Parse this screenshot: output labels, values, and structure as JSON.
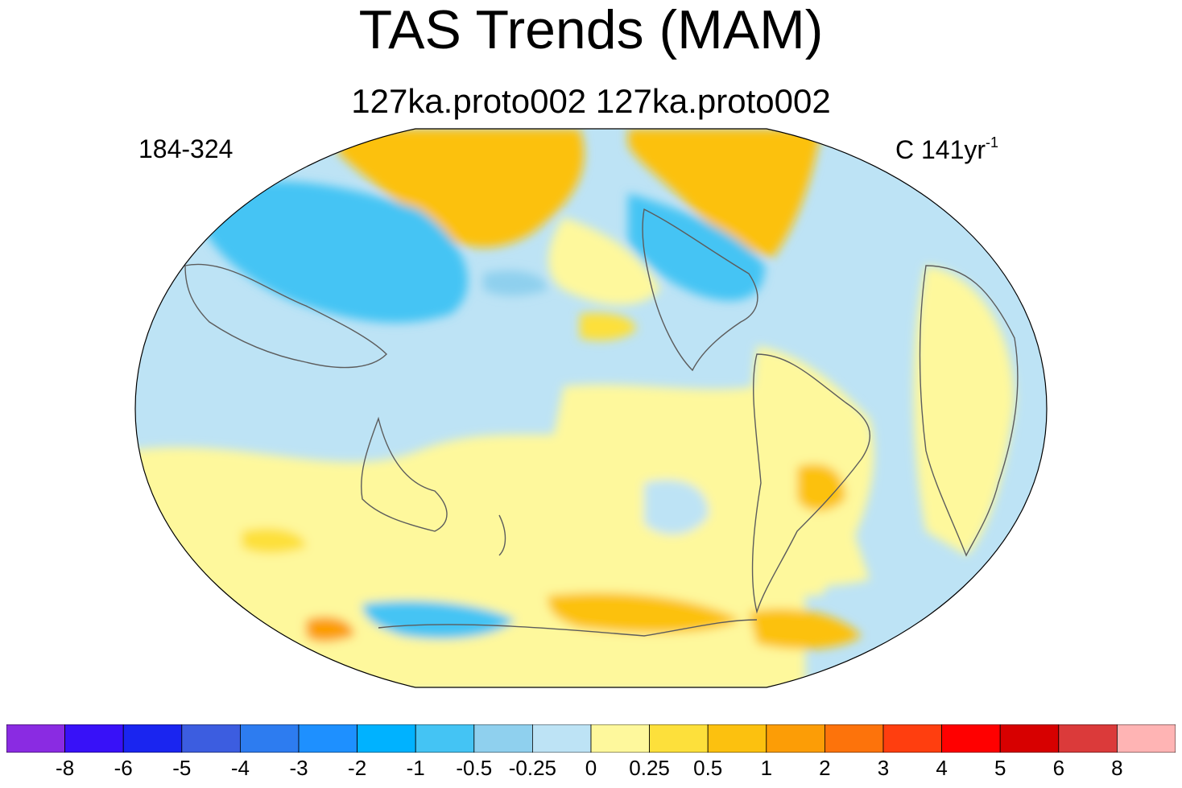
{
  "title": "TAS Trends (MAM)",
  "subtitle": "127ka.proto002  127ka.proto002",
  "left_label": "184-324",
  "right_label": {
    "prefix": "C 141yr",
    "superscript": "-1"
  },
  "colorbar": {
    "colors": [
      "#8a2be2",
      "#3811f8",
      "#1a25f0",
      "#3c5de0",
      "#2d7cf0",
      "#1e90ff",
      "#00b2ff",
      "#44c4f4",
      "#8fd0ee",
      "#bde3f5",
      "#fef89c",
      "#fde03b",
      "#fcc10f",
      "#fc9d06",
      "#fd730b",
      "#ff3e0f",
      "#ff0000",
      "#d70000",
      "#db3a3a",
      "#ffb4b4"
    ],
    "labels": [
      "-8",
      "-6",
      "-5",
      "-4",
      "-3",
      "-2",
      "-1",
      "-0.5",
      "-0.25",
      "0",
      "0.25",
      "0.5",
      "1",
      "2",
      "3",
      "4",
      "5",
      "6",
      "8"
    ]
  },
  "map": {
    "projection": "Robinson-like global, Pacific-centered",
    "variable": "TAS",
    "season": "MAM"
  }
}
